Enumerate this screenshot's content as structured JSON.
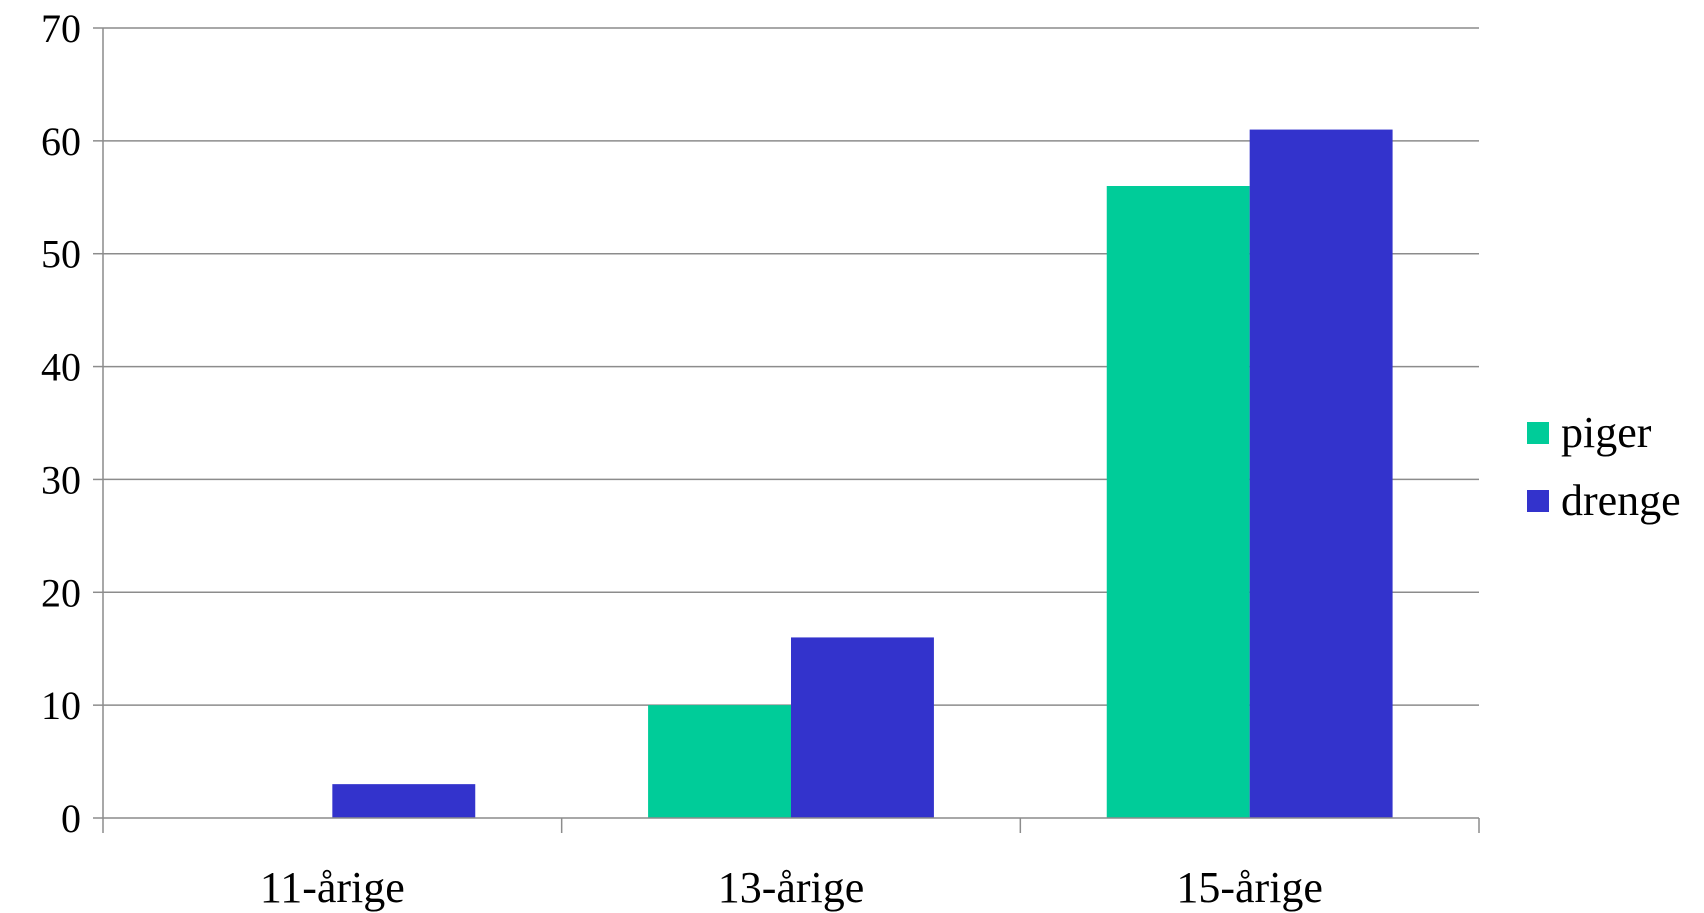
{
  "chart_data": {
    "type": "bar",
    "categories": [
      "11-årige",
      "13-årige",
      "15-årige"
    ],
    "series": [
      {
        "name": "piger",
        "values": [
          0,
          10,
          56
        ],
        "color": "#00CC99"
      },
      {
        "name": "drenge",
        "values": [
          3,
          16,
          61
        ],
        "color": "#3333CC"
      }
    ],
    "ylim": [
      0,
      70
    ],
    "yticks": [
      0,
      10,
      20,
      30,
      40,
      50,
      60,
      70
    ],
    "grid": true,
    "legend_position": "right",
    "title": "",
    "xlabel": "",
    "ylabel": ""
  }
}
